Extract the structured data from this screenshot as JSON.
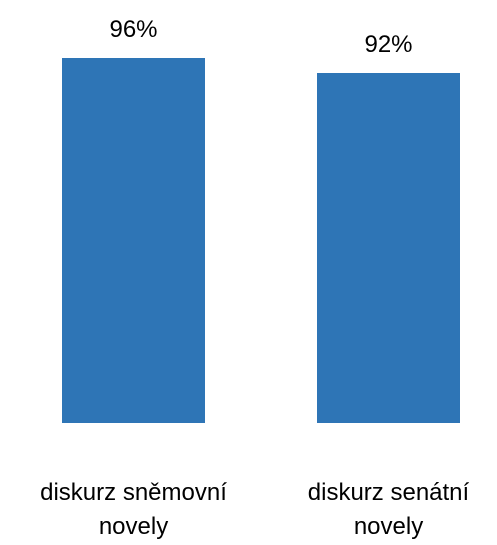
{
  "chart_data": {
    "type": "bar",
    "categories": [
      "diskurz sněmovní novely",
      "diskurz senátní novely"
    ],
    "values": [
      96,
      92
    ],
    "value_labels": [
      "96%",
      "92%"
    ],
    "color": "#2e75b6",
    "ylim": [
      0,
      100
    ]
  }
}
